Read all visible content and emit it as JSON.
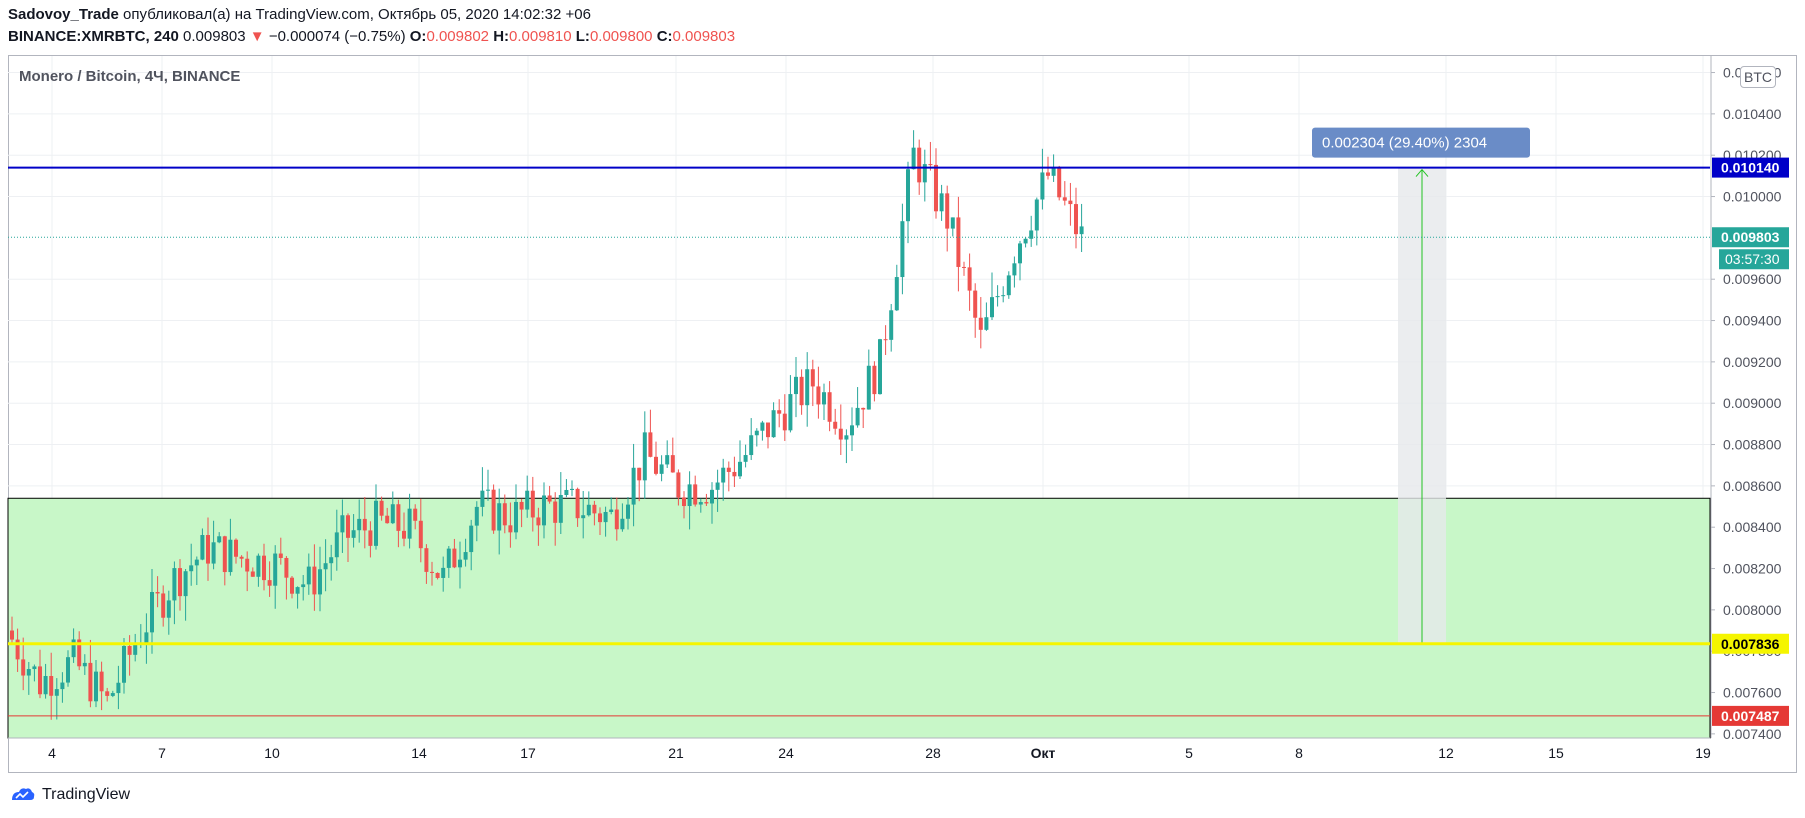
{
  "header": {
    "author": "Sadovoy_Trade",
    "published_text": " опубликовал(а) на TradingView.com, Октябрь 05, 2020 14:02:32 +06",
    "symbol": "BINANCE:XMRBTC, 240",
    "last": "0.009803",
    "change": "−0.000074 (−0.75%)",
    "o_label": "O:",
    "o_value": "0.009802",
    "h_label": "H:",
    "h_value": "0.009810",
    "l_label": "L:",
    "l_value": "0.009800",
    "c_label": "C:",
    "c_value": "0.009803"
  },
  "legend_title": "Monero / Bitcoin, 4Ч, BINANCE",
  "unit_badge": "BTC",
  "brand": "TradingView",
  "colors": {
    "up": "#26a69a",
    "down": "#ef5350",
    "zone": "#c8f7c8",
    "resistance": "#0000c8",
    "support_yellow": "#f5f500",
    "stop": "#e53935",
    "measure": "#6a8cc7",
    "grid": "#eef0f3"
  },
  "chart_data": {
    "type": "candlestick",
    "title": "Monero / Bitcoin, 4Ч, BINANCE",
    "y_axis": {
      "min": 0.00738,
      "max": 0.01068,
      "ticks": [
        "0.010600",
        "0.010400",
        "0.010200",
        "0.010000",
        "0.009600",
        "0.009400",
        "0.009200",
        "0.009000",
        "0.008800",
        "0.008600",
        "0.008400",
        "0.008200",
        "0.008000",
        "0.007800",
        "0.007600",
        "0.007400"
      ]
    },
    "x_axis": {
      "ticks": [
        "4",
        "7",
        "10",
        "14",
        "17",
        "21",
        "24",
        "28",
        "Окт",
        "5",
        "8",
        "12",
        "15",
        "19"
      ]
    },
    "close_path": [
      [
        "4",
        0.0079
      ],
      [
        "5",
        0.00765
      ],
      [
        "6",
        0.00775
      ],
      [
        "7",
        0.00755
      ],
      [
        "8",
        0.0079
      ],
      [
        "9",
        0.00815
      ],
      [
        "10",
        0.0083
      ],
      [
        "11",
        0.00825
      ],
      [
        "12",
        0.00822
      ],
      [
        "13",
        0.00812
      ],
      [
        "14",
        0.00835
      ],
      [
        "15",
        0.00842
      ],
      [
        "16",
        0.0084
      ],
      [
        "17",
        0.00815
      ],
      [
        "18",
        0.0085
      ],
      [
        "19",
        0.00845
      ],
      [
        "20",
        0.0085
      ],
      [
        "21",
        0.0085
      ],
      [
        "22",
        0.00845
      ],
      [
        "23",
        0.00875
      ],
      [
        "24",
        0.0086
      ],
      [
        "25",
        0.0086
      ],
      [
        "26",
        0.00875
      ],
      [
        "27",
        0.00895
      ],
      [
        "28",
        0.0091
      ],
      [
        "29",
        0.0089
      ],
      [
        "30",
        0.0092
      ],
      [
        "Окт",
        0.0102
      ],
      [
        "2",
        0.0099
      ],
      [
        "3",
        0.0093
      ],
      [
        "4",
        0.00975
      ],
      [
        "5",
        0.0101
      ],
      [
        "5b",
        0.0098
      ]
    ],
    "levels": [
      {
        "value": 0.01014,
        "label": "0.010140",
        "color": "#0000c8"
      },
      {
        "value": 0.009803,
        "label": "0.009803",
        "color": "#26a69a"
      },
      {
        "value": 0.007836,
        "label": "0.007836",
        "color": "#f5f500"
      },
      {
        "value": 0.007487,
        "label": "0.007487",
        "color": "#e53935"
      }
    ],
    "countdown": "03:57:30",
    "zone": {
      "top": 0.00854,
      "bottom": 0.00739
    },
    "measure": {
      "from": 0.007836,
      "to": 0.01014,
      "label": "0.002304 (29.40%) 2304"
    }
  }
}
